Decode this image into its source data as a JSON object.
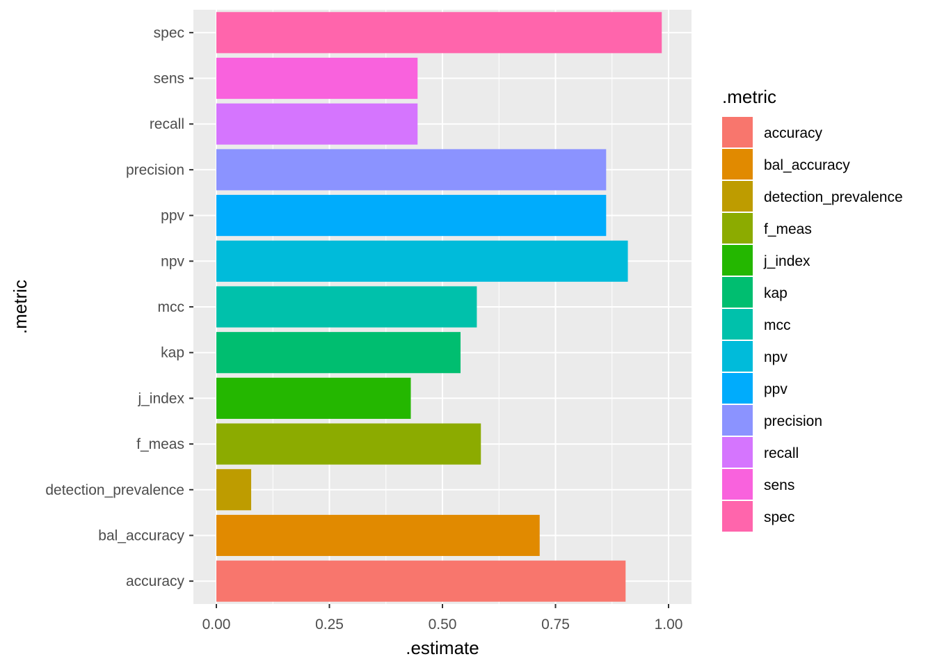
{
  "chart_data": {
    "type": "bar",
    "orientation": "horizontal",
    "xlabel": ".estimate",
    "ylabel": ".metric",
    "xlim": [
      0,
      1
    ],
    "xticks": [
      0,
      0.25,
      0.5,
      0.75,
      1
    ],
    "xtick_labels": [
      "0.00",
      "0.25",
      "0.50",
      "0.75",
      "1.00"
    ],
    "grid": true,
    "background": "#ebebeb",
    "legend": {
      "title": ".metric",
      "position": "right"
    },
    "bars": [
      {
        "category": "accuracy",
        "value": 0.905,
        "color": "#F8766D"
      },
      {
        "category": "bal_accuracy",
        "value": 0.715,
        "color": "#E18A00"
      },
      {
        "category": "detection_prevalence",
        "value": 0.077,
        "color": "#BE9C00"
      },
      {
        "category": "f_meas",
        "value": 0.585,
        "color": "#8CAB00"
      },
      {
        "category": "j_index",
        "value": 0.43,
        "color": "#24B700"
      },
      {
        "category": "kap",
        "value": 0.54,
        "color": "#00BE70"
      },
      {
        "category": "mcc",
        "value": 0.576,
        "color": "#00C1AB"
      },
      {
        "category": "npv",
        "value": 0.91,
        "color": "#00BBDA"
      },
      {
        "category": "ppv",
        "value": 0.862,
        "color": "#00ACFC"
      },
      {
        "category": "precision",
        "value": 0.862,
        "color": "#8B93FF"
      },
      {
        "category": "recall",
        "value": 0.445,
        "color": "#D575FE"
      },
      {
        "category": "sens",
        "value": 0.445,
        "color": "#F962DD"
      },
      {
        "category": "spec",
        "value": 0.985,
        "color": "#FF65AC"
      }
    ]
  }
}
